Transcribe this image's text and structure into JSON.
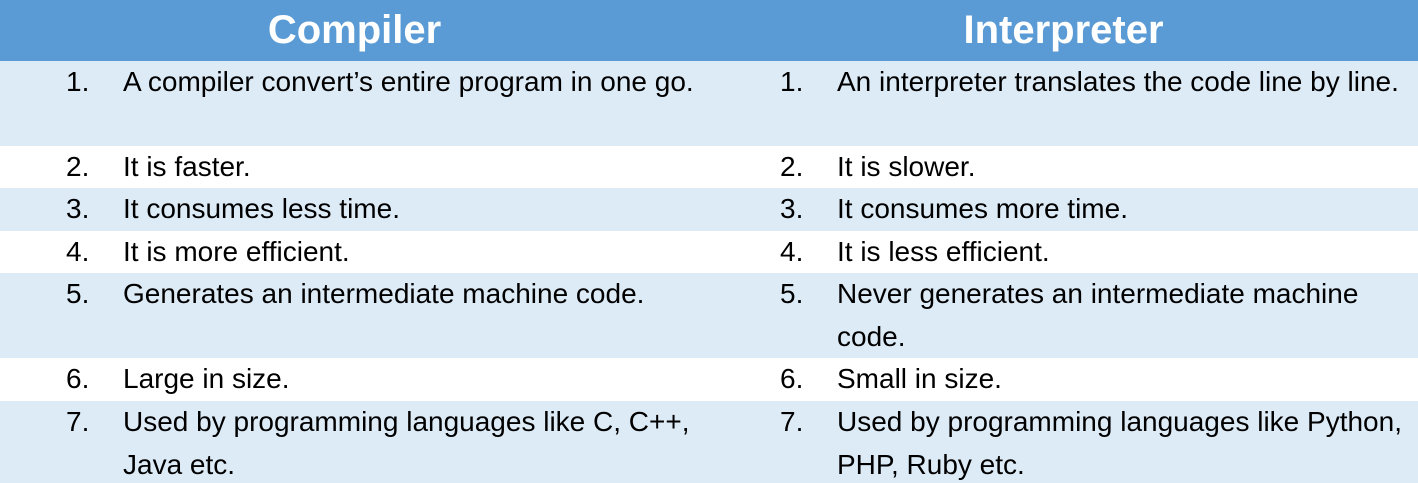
{
  "header": {
    "left": "Compiler",
    "right": "Interpreter"
  },
  "rows": [
    {
      "left": {
        "num": "1.",
        "text": "A compiler convert’s entire program in one go."
      },
      "right": {
        "num": "1.",
        "text": "An interpreter translates the code line by line."
      }
    },
    {
      "left": {
        "num": "2.",
        "text": "It is faster."
      },
      "right": {
        "num": "2.",
        "text": "It is slower."
      }
    },
    {
      "left": {
        "num": "3.",
        "text": "It consumes less time."
      },
      "right": {
        "num": "3.",
        "text": "It consumes more time."
      }
    },
    {
      "left": {
        "num": "4.",
        "text": "It is more efficient."
      },
      "right": {
        "num": "4.",
        "text": "It is less efficient."
      }
    },
    {
      "left": {
        "num": "5.",
        "text": "Generates an intermediate machine code."
      },
      "right": {
        "num": "5.",
        "text": "Never generates an intermediate machine code."
      }
    },
    {
      "left": {
        "num": "6.",
        "text": "Large in size."
      },
      "right": {
        "num": "6.",
        "text": "Small in size."
      }
    },
    {
      "left": {
        "num": "7.",
        "text": "Used by programming languages like C, C++, Java etc."
      },
      "right": {
        "num": "7.",
        "text": "Used by programming languages like Python, PHP, Ruby etc."
      }
    }
  ],
  "colors": {
    "header_bg": "#5b9bd5",
    "row_shaded": "#ddebf7",
    "row_plain": "#ffffff",
    "header_text": "#ffffff",
    "body_text": "#000000"
  }
}
